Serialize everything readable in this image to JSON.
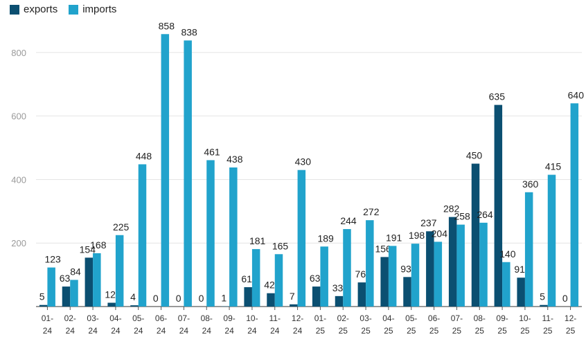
{
  "chart_data": {
    "type": "bar",
    "categories": [
      [
        "01-",
        "24"
      ],
      [
        "02-",
        "24"
      ],
      [
        "03-",
        "24"
      ],
      [
        "04-",
        "24"
      ],
      [
        "05-",
        "24"
      ],
      [
        "06-",
        "24"
      ],
      [
        "07-",
        "24"
      ],
      [
        "08-",
        "24"
      ],
      [
        "09-",
        "24"
      ],
      [
        "10-",
        "24"
      ],
      [
        "11-",
        "24"
      ],
      [
        "12-",
        "24"
      ],
      [
        "01-",
        "25"
      ],
      [
        "02-",
        "25"
      ],
      [
        "03-",
        "25"
      ],
      [
        "04-",
        "25"
      ],
      [
        "05-",
        "25"
      ],
      [
        "06-",
        "25"
      ],
      [
        "07-",
        "25"
      ],
      [
        "08-",
        "25"
      ],
      [
        "09-",
        "25"
      ],
      [
        "10-",
        "25"
      ],
      [
        "11-",
        "25"
      ],
      [
        "12-",
        "25"
      ]
    ],
    "series": [
      {
        "name": "exports",
        "color": "#0b4f71",
        "values": [
          5,
          63,
          154,
          12,
          4,
          0,
          0,
          0,
          1,
          61,
          42,
          7,
          63,
          33,
          76,
          156,
          93,
          237,
          282,
          450,
          635,
          91,
          5,
          0
        ]
      },
      {
        "name": "imports",
        "color": "#21a3cc",
        "values": [
          123,
          84,
          168,
          225,
          448,
          858,
          838,
          461,
          438,
          181,
          165,
          430,
          189,
          244,
          272,
          191,
          198,
          204,
          258,
          264,
          140,
          360,
          415,
          640
        ]
      }
    ],
    "ylim": [
      0,
      900
    ],
    "yticks": [
      200,
      400,
      600,
      800
    ],
    "grid": true,
    "legend": "top-left"
  }
}
